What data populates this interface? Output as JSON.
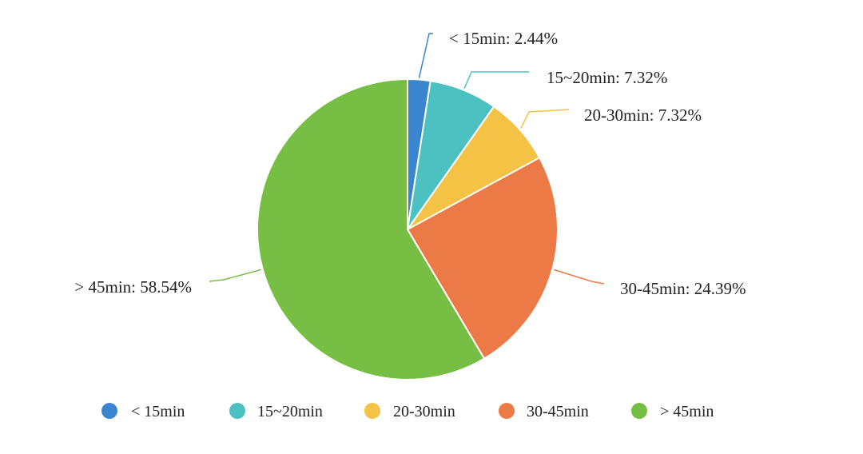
{
  "chart_data": {
    "type": "pie",
    "title": "",
    "start_angle_deg": 0,
    "direction": "clockwise",
    "slices": [
      {
        "name": "< 15min",
        "value": 2.44,
        "label": "< 15min: 2.44%",
        "color": "#3a85d0"
      },
      {
        "name": "15~20min",
        "value": 7.32,
        "label": "15~20min: 7.32%",
        "color": "#4cc1c1"
      },
      {
        "name": "20-30min",
        "value": 7.32,
        "label": "20-30min: 7.32%",
        "color": "#f4c244"
      },
      {
        "name": "30-45min",
        "value": 24.39,
        "label": "30-45min: 24.39%",
        "color": "#ec7a47"
      },
      {
        "name": "> 45min",
        "value": 58.54,
        "label": "> 45min: 58.54%",
        "color": "#77bf44"
      }
    ],
    "legend": {
      "position": "bottom",
      "items": [
        "< 15min",
        "15~20min",
        "20-30min",
        "30-45min",
        "> 45min"
      ]
    }
  }
}
